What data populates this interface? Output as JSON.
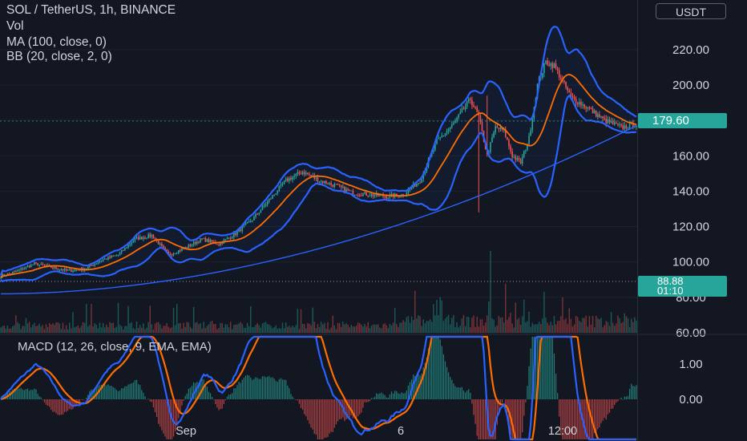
{
  "legend": {
    "symbol": "SOL / TetherUS, 1h, BINANCE",
    "volume": "Vol",
    "ma": "MA (100, close, 0)",
    "bb": "BB (20, close, 2, 0)",
    "macd": "MACD (12, 26, close, 9, EMA, EMA)"
  },
  "currency": "USDT",
  "last_price": "179.60",
  "crosshair_price": "88.88",
  "countdown": "01:10",
  "colors": {
    "background": "#131722",
    "up": "#26a69a",
    "down": "#ef5350",
    "ma": "#2962ff",
    "bb_basis": "#ff6d00",
    "bb_band": "#2962ff",
    "macd": "#2962ff",
    "signal": "#ff6d00"
  },
  "chart_data": {
    "type": "line",
    "pair": "SOL / TetherUS",
    "timeframe": "1h",
    "exchange": "BINANCE",
    "price_axis": {
      "ticks": [
        "220.00",
        "200.00",
        "180.00",
        "160.00",
        "140.00",
        "120.00",
        "100.00",
        "80.00",
        "60.00"
      ],
      "ylim": [
        60,
        233
      ]
    },
    "macd_axis": {
      "ticks": [
        "1.00",
        "0.00"
      ]
    },
    "time_axis": {
      "ticks": [
        "Sep",
        "6",
        "12:00"
      ]
    },
    "close_path": [
      [
        0,
        92
      ],
      [
        10,
        95
      ],
      [
        20,
        99
      ],
      [
        30,
        97
      ],
      [
        40,
        95
      ],
      [
        50,
        96
      ],
      [
        60,
        101
      ],
      [
        70,
        104
      ],
      [
        80,
        113
      ],
      [
        90,
        115
      ],
      [
        100,
        104
      ],
      [
        110,
        108
      ],
      [
        120,
        113
      ],
      [
        130,
        110
      ],
      [
        140,
        116
      ],
      [
        150,
        124
      ],
      [
        160,
        135
      ],
      [
        170,
        146
      ],
      [
        180,
        151
      ],
      [
        190,
        146
      ],
      [
        200,
        143
      ],
      [
        210,
        139
      ],
      [
        220,
        138
      ],
      [
        230,
        137
      ],
      [
        240,
        138
      ],
      [
        250,
        146
      ],
      [
        260,
        168
      ],
      [
        270,
        178
      ],
      [
        280,
        192
      ],
      [
        285,
        182
      ],
      [
        290,
        160
      ],
      [
        295,
        176
      ],
      [
        300,
        174
      ],
      [
        305,
        160
      ],
      [
        310,
        156
      ],
      [
        315,
        170
      ],
      [
        320,
        200
      ],
      [
        325,
        213
      ],
      [
        330,
        211
      ],
      [
        340,
        193
      ],
      [
        350,
        187
      ],
      [
        360,
        180
      ],
      [
        370,
        176
      ],
      [
        380,
        178
      ]
    ],
    "ma100": {
      "name": "MA (100, close, 0)",
      "start": 82,
      "end": 177
    },
    "bollinger": {
      "name": "BB (20, close, 2, 0)",
      "mult": 2,
      "period": 20
    },
    "macd": {
      "name": "MACD (12, 26, close, 9, EMA, EMA)",
      "fast": 12,
      "slow": 26,
      "signal": 9
    },
    "volume_spike_bar": 292
  }
}
